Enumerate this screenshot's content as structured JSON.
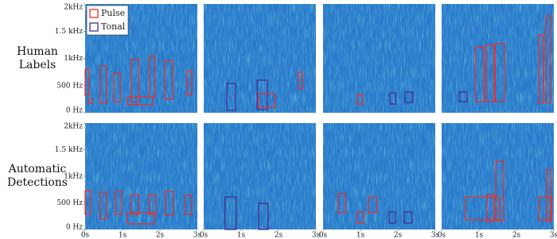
{
  "legend": [
    {
      "name": "Pulse",
      "color": "#e8312e"
    },
    {
      "name": "Tonal",
      "color": "#4b2a8c"
    }
  ],
  "xlim": [
    0,
    3
  ],
  "ylim": [
    0,
    2000
  ],
  "xticks": [
    {
      "value": 0,
      "label": "0s"
    },
    {
      "value": 1,
      "label": "1s"
    },
    {
      "value": 2,
      "label": "2s"
    },
    {
      "value": 3,
      "label": "3s"
    }
  ],
  "yticks": [
    {
      "value": 0,
      "label": "0 Hz"
    },
    {
      "value": 500,
      "label": "500 Hz"
    },
    {
      "value": 1000,
      "label": "1kHz"
    },
    {
      "value": 1500,
      "label": "1.5 kHz"
    },
    {
      "value": 2000,
      "label": "2kHz"
    }
  ],
  "rows": [
    {
      "label": "Human Labels",
      "panels": [
        {
          "boxes": [
            {
              "class": 0,
              "t": [
                0,
                0.1
              ],
              "f": [
                320,
                800
              ]
            },
            {
              "class": 0,
              "t": [
                0.09,
                0.19
              ],
              "f": [
                175,
                260
              ]
            },
            {
              "class": 0,
              "t": [
                0.4,
                0.57
              ],
              "f": [
                175,
                860
              ]
            },
            {
              "class": 0,
              "t": [
                0.77,
                0.94
              ],
              "f": [
                200,
                730
              ]
            },
            {
              "class": 0,
              "t": [
                1.13,
                1.81
              ],
              "f": [
                145,
                290
              ]
            },
            {
              "class": 0,
              "t": [
                1.23,
                1.43
              ],
              "f": [
                200,
                980
              ]
            },
            {
              "class": 0,
              "t": [
                1.72,
                1.87
              ],
              "f": [
                290,
                1040
              ]
            },
            {
              "class": 0,
              "t": [
                2.13,
                2.34
              ],
              "f": [
                250,
                960
              ]
            },
            {
              "class": 0,
              "t": [
                2.72,
                2.85
              ],
              "f": [
                320,
                770
              ]
            }
          ]
        },
        {
          "boxes": [
            {
              "class": 1,
              "t": [
                0.62,
                0.85
              ],
              "f": [
                45,
                540
              ]
            },
            {
              "class": 1,
              "t": [
                1.43,
                1.7
              ],
              "f": [
                60,
                600
              ]
            },
            {
              "class": 0,
              "t": [
                1.47,
                1.91
              ],
              "f": [
                100,
                350
              ]
            },
            {
              "class": 0,
              "t": [
                2.53,
                2.64
              ],
              "f": [
                440,
                745
              ]
            }
          ]
        },
        {
          "boxes": [
            {
              "class": 0,
              "t": [
                0.91,
                1.06
              ],
              "f": [
                160,
                335
              ]
            },
            {
              "class": 1,
              "t": [
                1.79,
                1.94
              ],
              "f": [
                160,
                365
              ]
            },
            {
              "class": 1,
              "t": [
                2.19,
                2.4
              ],
              "f": [
                190,
                380
              ]
            }
          ]
        },
        {
          "boxes": [
            {
              "class": 1,
              "t": [
                0.47,
                0.68
              ],
              "f": [
                205,
                380
              ]
            },
            {
              "class": 0,
              "t": [
                0.91,
                1.13
              ],
              "f": [
                205,
                1210
              ]
            },
            {
              "class": 0,
              "t": [
                1.19,
                1.4
              ],
              "f": [
                205,
                1240
              ]
            },
            {
              "class": 0,
              "t": [
                1.43,
                1.68
              ],
              "f": [
                205,
                1270
              ]
            },
            {
              "class": 0,
              "t": [
                2.6,
                2.72
              ],
              "f": [
                175,
                1430
              ]
            },
            {
              "class": 0,
              "t": [
                2.79,
                2.91
              ],
              "f": [
                175,
                1780
              ]
            }
          ]
        }
      ]
    },
    {
      "label": "Automatic Detections",
      "panels": [
        {
          "boxes": [
            {
              "class": 0,
              "t": [
                0,
                0.15
              ],
              "f": [
                285,
                730
              ]
            },
            {
              "class": 0,
              "t": [
                0.4,
                0.57
              ],
              "f": [
                195,
                700
              ]
            },
            {
              "class": 0,
              "t": [
                0.81,
                0.98
              ],
              "f": [
                285,
                715
              ]
            },
            {
              "class": 0,
              "t": [
                1.13,
                1.85
              ],
              "f": [
                105,
                315
              ]
            },
            {
              "class": 0,
              "t": [
                1.23,
                1.43
              ],
              "f": [
                285,
                655
              ]
            },
            {
              "class": 0,
              "t": [
                1.7,
                1.89
              ],
              "f": [
                285,
                655
              ]
            },
            {
              "class": 0,
              "t": [
                2.15,
                2.36
              ],
              "f": [
                270,
                715
              ]
            },
            {
              "class": 0,
              "t": [
                2.68,
                2.85
              ],
              "f": [
                285,
                640
              ]
            }
          ]
        },
        {
          "boxes": [
            {
              "class": 1,
              "t": [
                0.57,
                0.87
              ],
              "f": [
                0,
                610
              ]
            },
            {
              "class": 1,
              "t": [
                1.47,
                1.72
              ],
              "f": [
                0,
                490
              ]
            }
          ]
        },
        {
          "boxes": [
            {
              "class": 0,
              "t": [
                0.4,
                0.6
              ],
              "f": [
                315,
                670
              ]
            },
            {
              "class": 0,
              "t": [
                0.91,
                1.09
              ],
              "f": [
                120,
                330
              ]
            },
            {
              "class": 0,
              "t": [
                1.21,
                1.45
              ],
              "f": [
                315,
                600
              ]
            },
            {
              "class": 1,
              "t": [
                1.77,
                1.94
              ],
              "f": [
                120,
                330
              ]
            },
            {
              "class": 1,
              "t": [
                2.17,
                2.38
              ],
              "f": [
                120,
                330
              ]
            }
          ]
        },
        {
          "boxes": [
            {
              "class": 0,
              "t": [
                0.64,
                1.55
              ],
              "f": [
                180,
                610
              ]
            },
            {
              "class": 0,
              "t": [
                1.21,
                1.4
              ],
              "f": [
                150,
                655
              ]
            },
            {
              "class": 0,
              "t": [
                1.45,
                1.66
              ],
              "f": [
                165,
                1280
              ]
            },
            {
              "class": 0,
              "t": [
                2.6,
                2.94
              ],
              "f": [
                180,
                610
              ]
            },
            {
              "class": 0,
              "t": [
                2.81,
                2.91
              ],
              "f": [
                150,
                1130
              ]
            }
          ]
        }
      ]
    }
  ]
}
